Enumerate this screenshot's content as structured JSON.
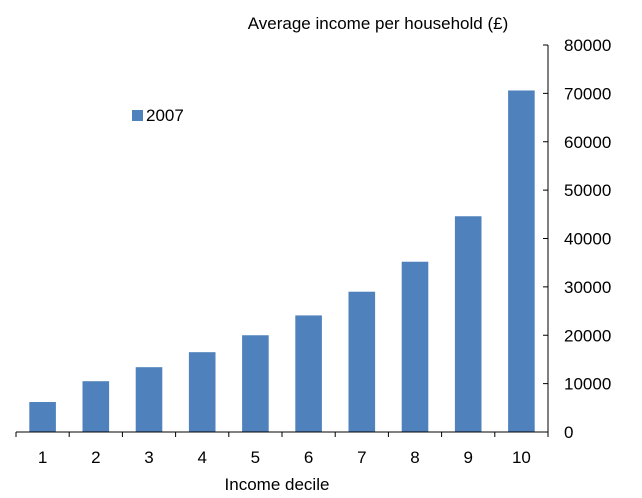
{
  "chart_data": {
    "type": "bar",
    "categories": [
      "1",
      "2",
      "3",
      "4",
      "5",
      "6",
      "7",
      "8",
      "9",
      "10"
    ],
    "series": [
      {
        "name": "2007",
        "values": [
          6200,
          10500,
          13400,
          16500,
          20000,
          24100,
          29000,
          35200,
          44600,
          70600
        ]
      }
    ],
    "title": "",
    "xlabel": "Income decile",
    "ylabel": "Average income per household (£)",
    "ylim": [
      0,
      80000
    ],
    "yticks": [
      0,
      10000,
      20000,
      30000,
      40000,
      50000,
      60000,
      70000,
      80000
    ],
    "y_axis_side": "right",
    "grid": false,
    "legend_position": "upper-left",
    "bar_color": "#4f81bd"
  }
}
